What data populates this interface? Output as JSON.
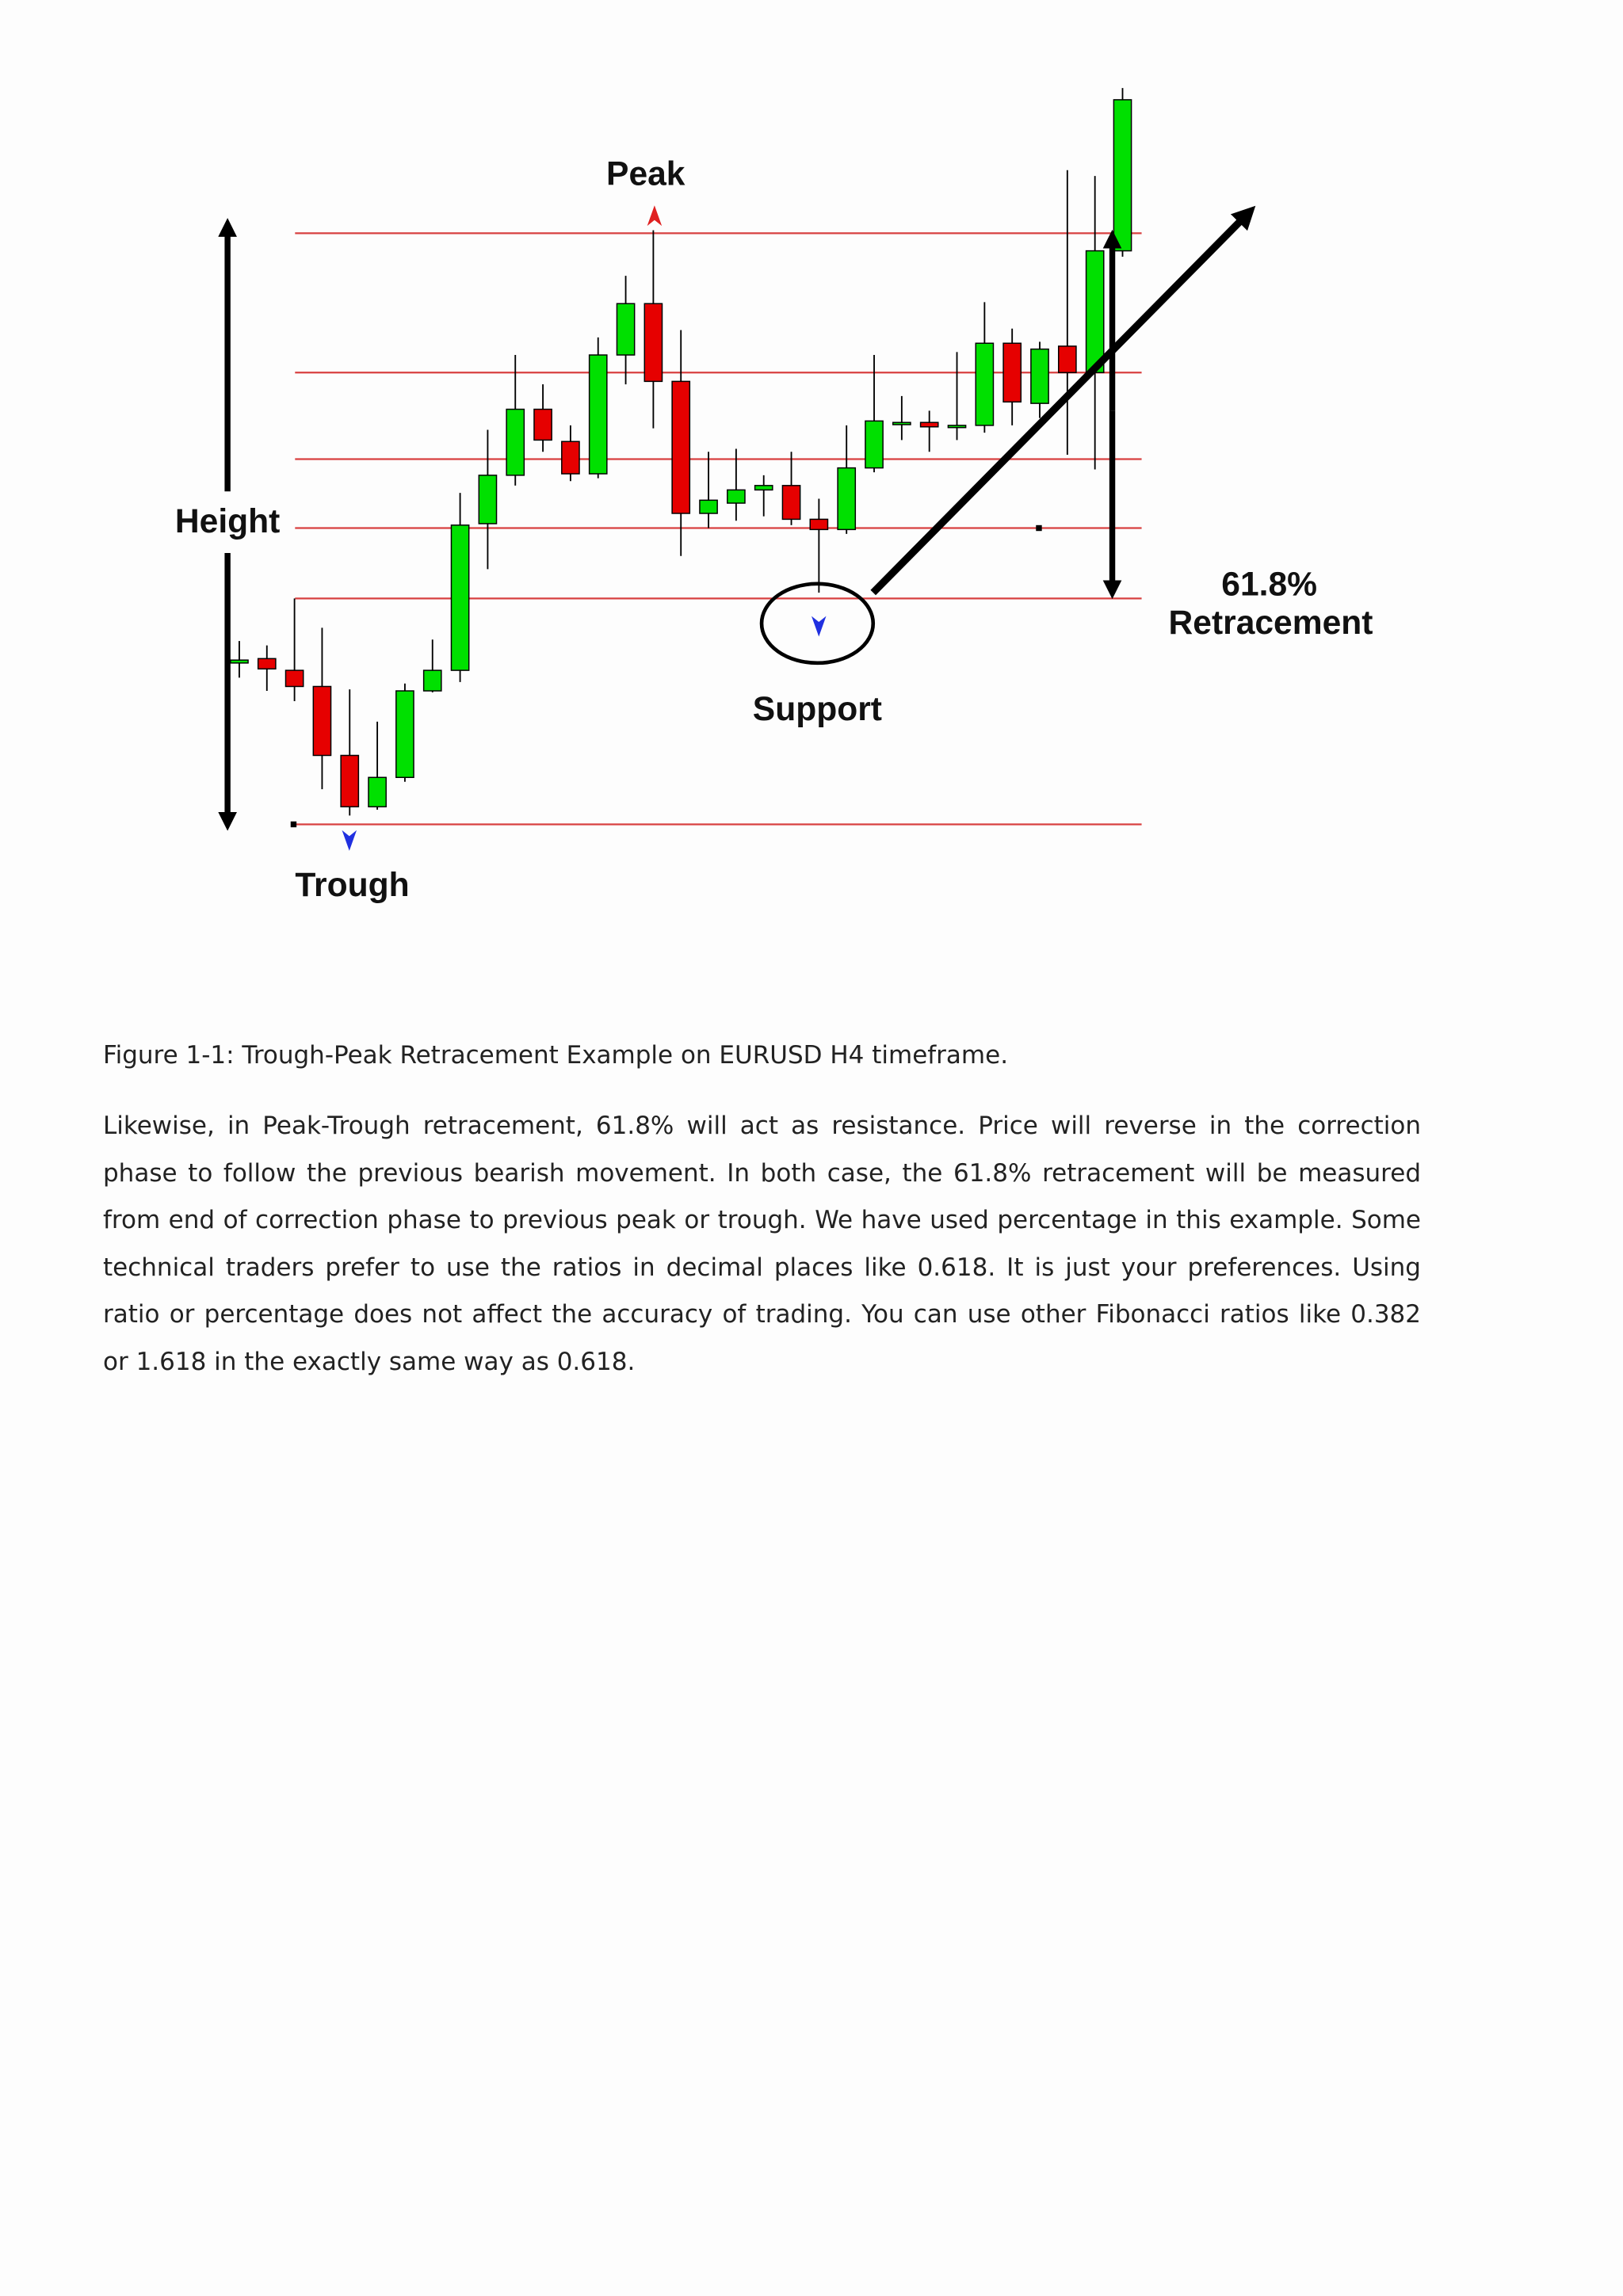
{
  "chart_data": {
    "type": "candlestick",
    "open": [
      148,
      151,
      143,
      132,
      85,
      50,
      70,
      129,
      143,
      243,
      276,
      321,
      299,
      277,
      358,
      393,
      340,
      250,
      257,
      266,
      269,
      246,
      239,
      281,
      311,
      312,
      309,
      310,
      366,
      325,
      364,
      346,
      429
    ],
    "high": [
      163,
      160,
      192,
      172,
      130,
      108,
      134,
      164,
      264,
      307,
      358,
      338,
      310,
      370,
      412,
      443,
      375,
      292,
      294,
      276,
      292,
      260,
      310,
      358,
      330,
      320,
      360,
      394,
      376,
      367,
      484,
      480,
      540
    ],
    "low": [
      138,
      129,
      122,
      62,
      44,
      48,
      67,
      128,
      135,
      212,
      269,
      292,
      272,
      274,
      338,
      308,
      221,
      240,
      245,
      248,
      242,
      196,
      236,
      278,
      300,
      292,
      300,
      305,
      310,
      315,
      290,
      280,
      425
    ],
    "close": [
      150,
      144,
      132,
      85,
      50,
      70,
      129,
      143,
      242,
      276,
      321,
      300,
      277,
      358,
      393,
      340,
      250,
      259,
      266,
      269,
      246,
      239,
      281,
      313,
      312,
      309,
      310,
      366,
      326,
      362,
      346,
      429,
      532
    ],
    "up_color": "#00e000",
    "down_color": "#e60000",
    "ylim": [
      30,
      560
    ],
    "levels": [
      441,
      346,
      287,
      240,
      192,
      38
    ],
    "level_color": "#d84040",
    "annotations": {
      "peak": "Peak",
      "height": "Height",
      "trough": "Trough",
      "support": "Support",
      "ratio": "61.8%",
      "retracement": "Retracement"
    }
  },
  "caption": "Figure 1-1: Trough-Peak Retracement Example on EURUSD H4 timeframe.",
  "body": "Likewise, in Peak-Trough retracement, 61.8% will act as resistance. Price will reverse in the correction phase to follow the previous bearish movement. In both case, the 61.8% retracement will be measured from end of correction phase to previous peak or trough. We have used percentage in this example. Some technical traders prefer to use the ratios in decimal places like 0.618. It is just your preferences. Using ratio or percentage does not affect the accuracy of trading. You can use other Fibonacci ratios like 0.382 or 1.618 in the exactly same way as 0.618."
}
